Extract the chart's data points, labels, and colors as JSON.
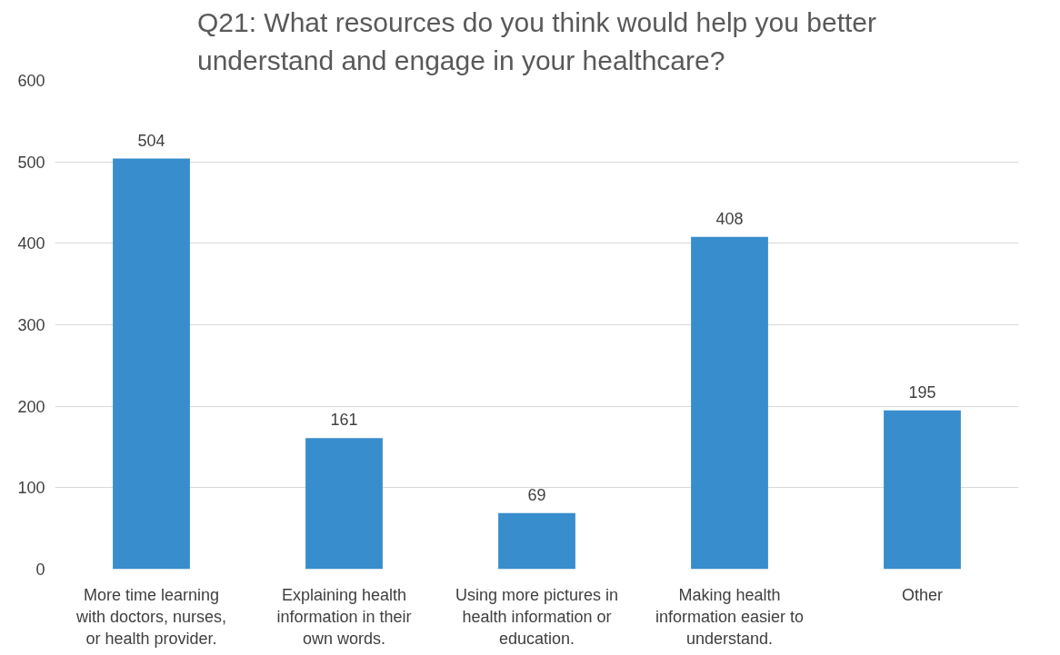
{
  "chart_data": {
    "type": "bar",
    "title": "Q21: What resources do you think would help you better understand and engage in your healthcare?",
    "categories": [
      "More time learning with doctors, nurses, or health provider.",
      "Explaining health information in their own words.",
      "Using more pictures in health information or education.",
      "Making health information easier to understand.",
      "Other"
    ],
    "values": [
      504,
      161,
      69,
      408,
      195
    ],
    "color": "#388dcc",
    "ylim": [
      0,
      600
    ],
    "yticks": [
      0,
      100,
      200,
      300,
      400,
      500,
      600
    ],
    "grid": "y",
    "data_labels": true
  }
}
